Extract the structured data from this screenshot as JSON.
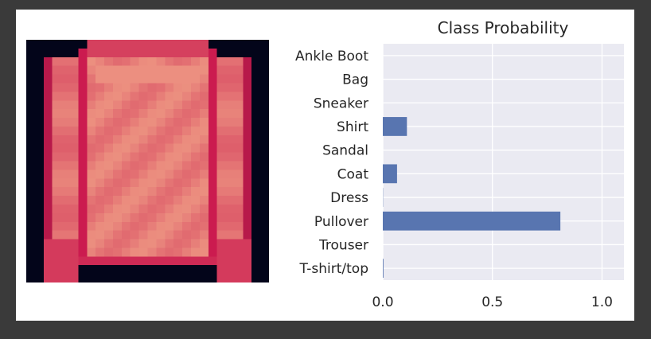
{
  "image_panel": {
    "description_icon": "pullover-garment-image",
    "colormap_dark": "#03051a",
    "colormap_mid": "#cb1b4f",
    "colormap_light": "#f6b48f"
  },
  "chart_data": {
    "type": "bar",
    "orientation": "horizontal",
    "title": "Class Probability",
    "categories": [
      "T-shirt/top",
      "Trouser",
      "Pullover",
      "Dress",
      "Coat",
      "Sandal",
      "Shirt",
      "Sneaker",
      "Bag",
      "Ankle Boot"
    ],
    "values": [
      0.003,
      0.0,
      0.81,
      0.001,
      0.065,
      0.0,
      0.11,
      0.0,
      0.0,
      0.0
    ],
    "xlim": [
      0,
      1.1
    ],
    "xticks": [
      0.0,
      0.5,
      1.0
    ],
    "xtick_labels": [
      "0.0",
      "0.5",
      "1.0"
    ],
    "grid": true,
    "bar_color": "#5875b0",
    "plot_background": "#eaeaf2",
    "grid_color": "#ffffff"
  }
}
